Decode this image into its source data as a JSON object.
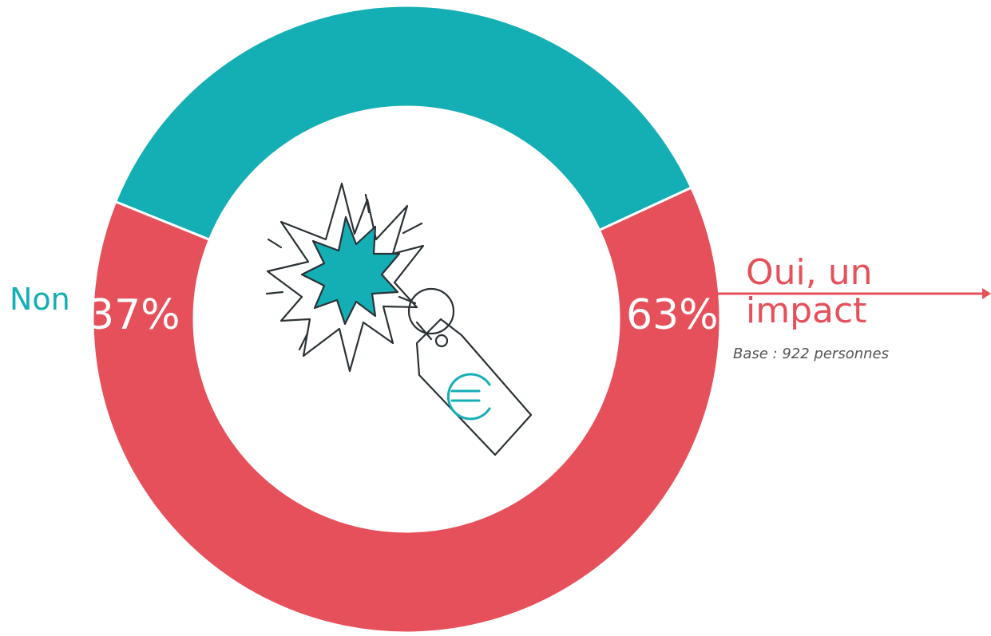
{
  "chart_data": {
    "type": "pie",
    "donut": true,
    "slices": [
      {
        "label": "Non",
        "value": 37,
        "value_label": "37%",
        "color": "#14AEB5"
      },
      {
        "label": "Oui, un impact",
        "value": 63,
        "value_label": "63%",
        "color": "#E6505A"
      }
    ],
    "annotations": [
      "Base : 922 personnes"
    ],
    "center_icon": "price-tag-euro-impact-icon"
  }
}
